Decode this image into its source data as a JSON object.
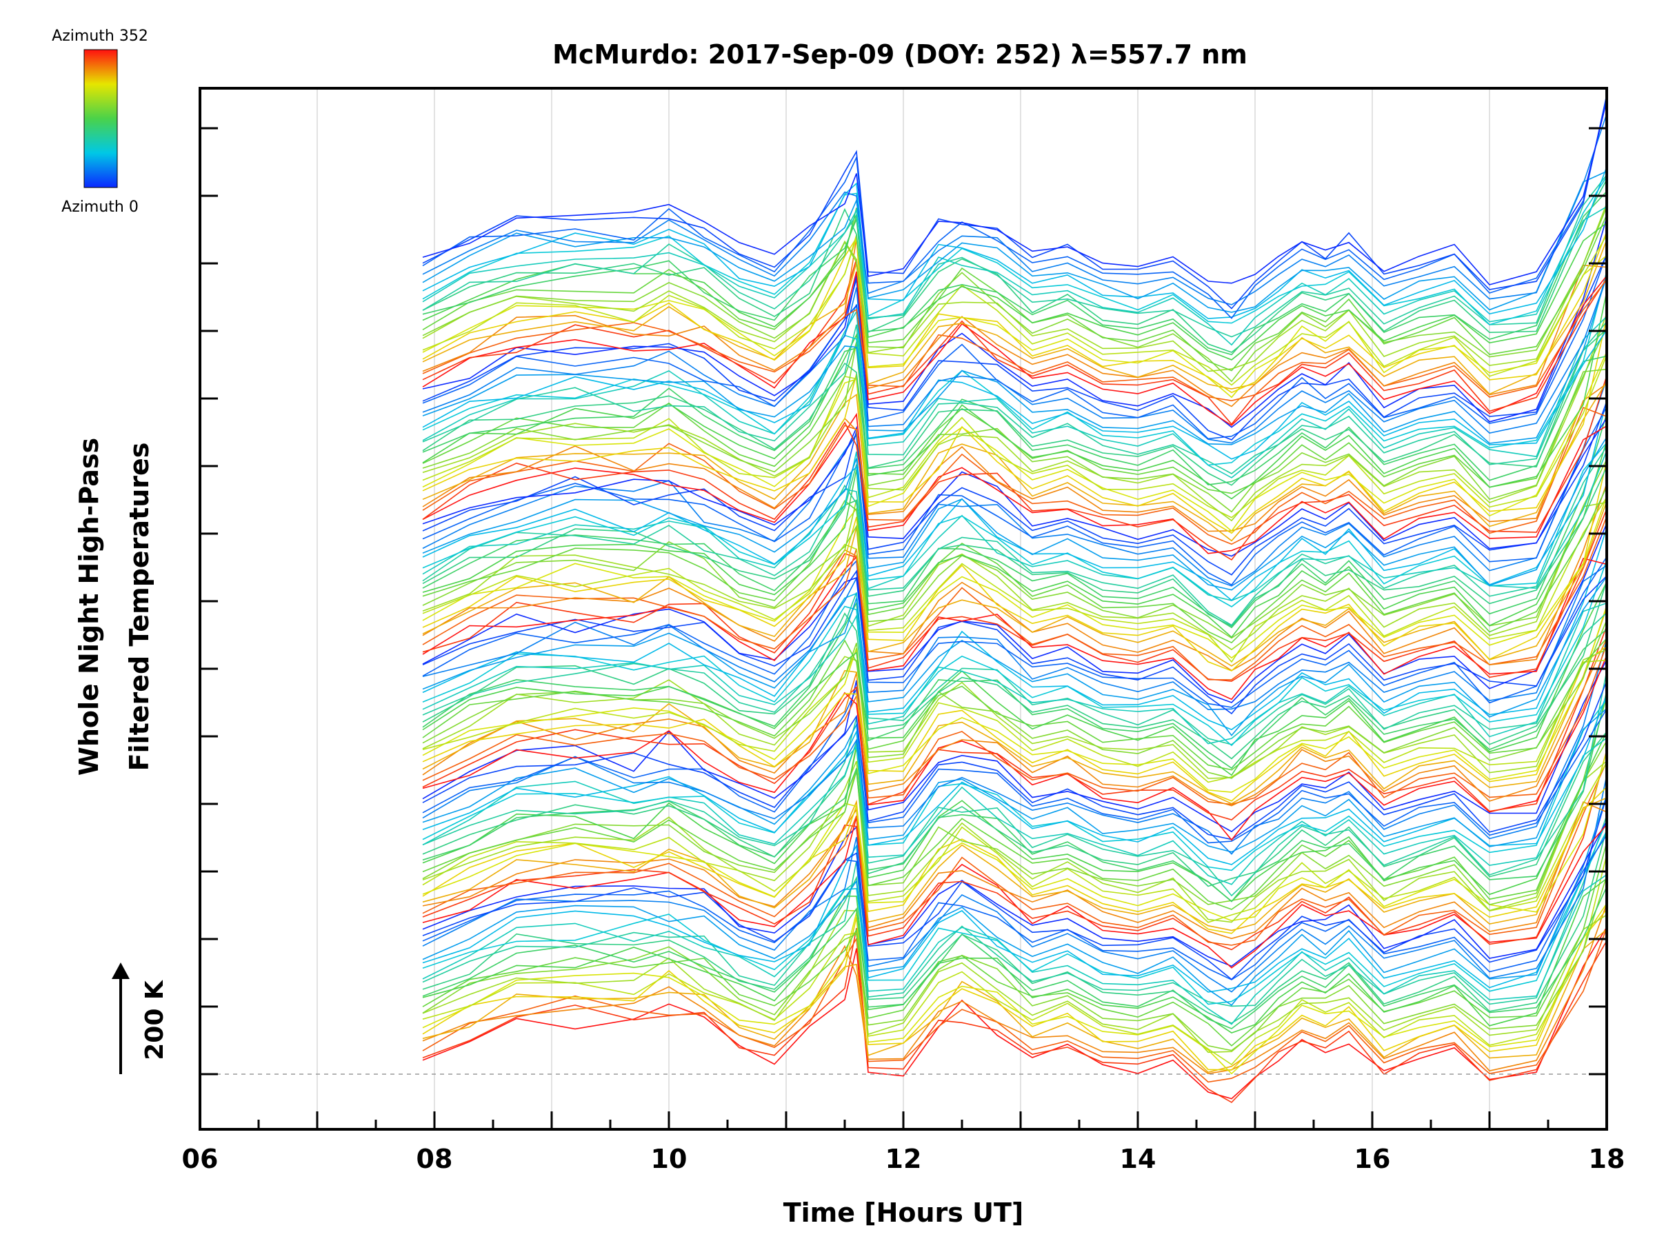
{
  "chart_data": {
    "type": "line",
    "title": "McMurdo: 2017-Sep-09 (DOY: 252) λ=557.7 nm",
    "xlabel": "Time [Hours UT]",
    "ylabel_line1": "Whole Night High-Pass",
    "ylabel_line2": "Filtered Temperatures",
    "xlim": [
      6,
      18
    ],
    "x_tick_labels": [
      "06",
      "08",
      "10",
      "12",
      "14",
      "16",
      "18"
    ],
    "x_ticks": [
      6,
      8,
      10,
      12,
      14,
      16,
      18
    ],
    "scale_bar_label": "200 K",
    "colorbar": {
      "top_label": "Azimuth 352",
      "bottom_label": "Azimuth 0",
      "colormap": "rainbow",
      "azimuth_range": [
        0,
        352
      ]
    },
    "data_start_hour": 7.9,
    "data_end_hour": 18.0,
    "group_count": 6,
    "traces_per_group": 23,
    "common_profile": {
      "x": [
        7.9,
        8.3,
        8.7,
        9.2,
        9.7,
        10.0,
        10.3,
        10.6,
        10.9,
        11.2,
        11.5,
        11.6,
        11.7,
        12.0,
        12.3,
        12.5,
        12.8,
        13.1,
        13.4,
        13.7,
        14.0,
        14.3,
        14.6,
        14.8,
        15.0,
        15.2,
        15.4,
        15.6,
        15.8,
        16.1,
        16.4,
        16.7,
        17.0,
        17.4,
        17.8,
        18.0
      ],
      "y": [
        0,
        5,
        9,
        10,
        9,
        11,
        8,
        3,
        0,
        7,
        18,
        22,
        -3,
        -2,
        8,
        11,
        7,
        1,
        3,
        -1,
        -2,
        0,
        -6,
        -8,
        -4,
        0,
        4,
        2,
        5,
        -3,
        0,
        2,
        -5,
        -3,
        18,
        30
      ]
    },
    "background_color": "#ffffff",
    "axis_color": "#000000",
    "grid_color": "#d8d8d8"
  }
}
